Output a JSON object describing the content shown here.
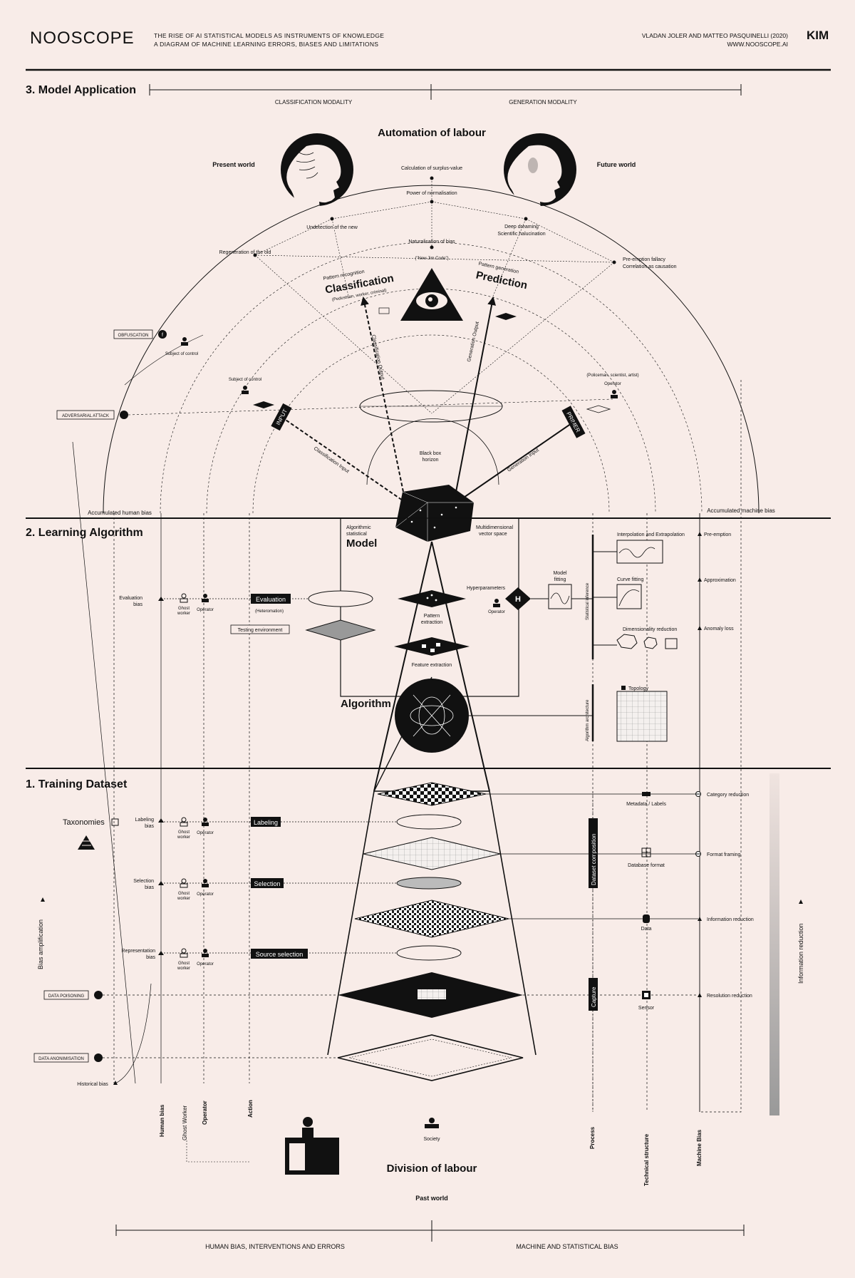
{
  "header": {
    "title": "NOOSCOPE",
    "subtitle_line1": "THE RISE OF AI STATISTICAL MODELS AS INSTRUMENTS OF KNOWLEDGE",
    "subtitle_line2": "A DIAGRAM OF MACHINE LEARNING ERRORS, BIASES AND LIMITATIONS",
    "authors": "VLADAN JOLER AND MATTEO PASQUINELLI (2020)",
    "website": "WWW.NOOSCOPE.AI",
    "logo": "KIM"
  },
  "section3": {
    "title": "3. Model Application",
    "classification_modality": "CLASSIFICATION MODALITY",
    "generation_modality": "GENERATION MODALITY",
    "automation": "Automation of labour",
    "present_world": "Present world",
    "future_world": "Future world",
    "surplus": "Calculation of surplus-value",
    "normalisation": "Power of normalisation",
    "undetection": "Undetection of the new",
    "deep_dreaming": "Deep dreaming",
    "halucination": "Scientific halucination",
    "naturalisation": "Naturalisation of bias",
    "new_jim_code": "(\"New Jim Code\")",
    "regeneration": "Regeneration of the old",
    "preemption_fallacy": "Pre-emption fallacy",
    "correlation": "Correlation as causation",
    "pattern_recognition": "Pattern recognition",
    "classification": "Classification",
    "classification_examples": "(Pedestrian, worker, criminal)",
    "pattern_generation": "Pattern generation",
    "prediction": "Prediction",
    "classification_output": "Classification Output",
    "generation_output": "Generation Output",
    "obfuscation": "OBFUSCATION",
    "subject_of_control": "Subject of control",
    "adversarial_attack": "ADVERSARIAL ATTACK",
    "operator": "Operator",
    "operator_examples": "(Policeman, scientist, artist)",
    "input": "INPUT",
    "primer": "PRIMER",
    "classification_input": "Classification Input",
    "generation_input": "Generation Input",
    "black_box": "Black box",
    "horizon": "horizon",
    "accumulated_human_bias": "Accumulated human bias",
    "accumulated_machine_bias": "Accumulated machine bias"
  },
  "section2": {
    "title": "2. Learning Algorithm",
    "algorithmic": "Algorithmic",
    "statistical": "statistical",
    "model": "Model",
    "multidimensional": "Multidimensional",
    "vector_space": "vector space",
    "evaluation_bias_1": "Evaluation",
    "evaluation_bias_2": "bias",
    "ghost_worker": "Ghost",
    "ghost_worker_2": "worker",
    "operator": "Operator",
    "evaluation": "Evaluation",
    "heteromation": "(Heteromation)",
    "testing_environment": "Testing environment",
    "pattern_extraction_1": "Pattern",
    "pattern_extraction_2": "extraction",
    "feature_extraction": "Feature extraction",
    "hyperparameters": "Hyperparameters",
    "h": "H",
    "model_fitting_1": "Model",
    "model_fitting_2": "fitting",
    "statistical_inference": "Statistical inference",
    "interpolation": "Interpolation and Extrapolation",
    "curve_fitting": "Curve fitting",
    "dimensionality_reduction": "Dimensionality reduction",
    "topology": "Topology",
    "algorithm_architecture": "Algorithm architecture",
    "algorithm": "Algorithm",
    "preemption": "Pre-emption",
    "approximation": "Approximation",
    "anomaly_loss": "Anomaly loss"
  },
  "section1": {
    "title": "1. Training Dataset",
    "taxonomies": "Taxonomies",
    "labeling_bias_1": "Labeling",
    "labeling_bias_2": "bias",
    "labeling": "Labeling",
    "selection_bias_1": "Selection",
    "selection_bias_2": "bias",
    "selection": "Selection",
    "representation_bias_1": "Representation",
    "representation_bias_2": "bias",
    "source_selection": "Source selection",
    "data_poisoning": "DATA POISONING",
    "data_anonimisation": "DATA ANONIMISATION",
    "historical_bias": "Historical bias",
    "bias_amplification": "Bias amplification",
    "dataset_composition": "Dataset composition",
    "capture": "Capture",
    "metadata_labels": "Metadata / Labels",
    "database_format": "Database format",
    "data": "Data",
    "sensor": "Sensor",
    "category_reduction": "Category reduction",
    "format_framing": "Format framing",
    "information_reduction": "Information reduction",
    "resolution_reduction": "Resolution reduction",
    "information_reduction_vertical": "Information reduction"
  },
  "footer": {
    "human_bias": "Human bias",
    "ghost_worker": "Ghost Worker",
    "operator": "Operator",
    "action": "Action",
    "society": "Society",
    "division": "Division of labour",
    "past_world": "Past world",
    "process": "Process",
    "technical_structure": "Technical structure",
    "machine_bias": "Machine Bias",
    "human_bias_interventions": "HUMAN BIAS, INTERVENTIONS AND ERRORS",
    "machine_statistical_bias": "MACHINE AND STATISTICAL BIAS"
  }
}
